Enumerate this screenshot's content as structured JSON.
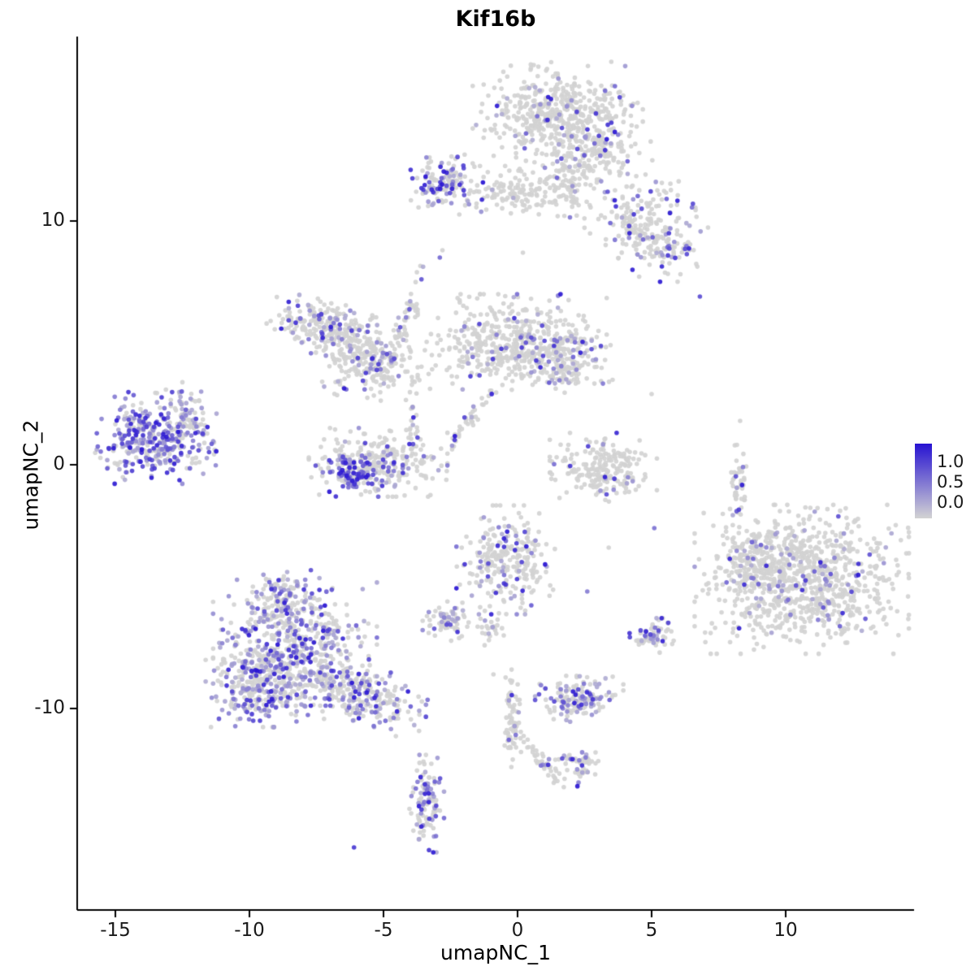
{
  "title": "Kif16b",
  "axes": {
    "x": {
      "label": "umapNC_1",
      "ticks": [
        -15,
        -10,
        -5,
        0,
        5,
        10
      ]
    },
    "y": {
      "label": "umapNC_2",
      "ticks": [
        -10,
        0,
        10
      ]
    }
  },
  "legend": {
    "labels": [
      "1.0",
      "0.5",
      "0.0"
    ],
    "color_high": "#2713d2",
    "color_low": "#d3d3d3"
  },
  "chart_data": {
    "type": "scatter",
    "title": "Kif16b",
    "xlabel": "umapNC_1",
    "ylabel": "umapNC_2",
    "xlim": [
      -16.4,
      14.8
    ],
    "ylim": [
      -17.9,
      17.6
    ],
    "x_ticks": [
      -15,
      -10,
      -5,
      0,
      5,
      10
    ],
    "y_ticks": [
      -10,
      0,
      10
    ],
    "legend_title_values": [
      1.0,
      0.5,
      0.0
    ],
    "color_scale": {
      "low": "#d3d3d3",
      "high": "#2713d2",
      "value_range": [
        0,
        1
      ]
    },
    "point_radius_px": 2.8,
    "clusters": [
      {
        "name": "top-main",
        "x": 1.5,
        "y": 14.3,
        "sx": 1.35,
        "sy": 0.95,
        "rot": 0,
        "n": 520,
        "frac": 0.1
      },
      {
        "name": "top-tail",
        "x": 3.1,
        "y": 12.7,
        "sx": 0.8,
        "sy": 0.7,
        "rot": -20,
        "n": 130,
        "frac": 0.12
      },
      {
        "name": "top-neck",
        "x": 1.9,
        "y": 11.5,
        "sx": 0.35,
        "sy": 0.7,
        "rot": 0,
        "n": 55,
        "frac": 0.06
      },
      {
        "name": "upper-band",
        "x": 0.2,
        "y": 11.2,
        "sx": 1.3,
        "sy": 0.45,
        "rot": 0,
        "n": 150,
        "frac": 0.07
      },
      {
        "name": "upper-purple",
        "x": -2.6,
        "y": 11.6,
        "sx": 0.65,
        "sy": 0.5,
        "rot": 0,
        "n": 130,
        "frac": 0.45,
        "bias": 1.5
      },
      {
        "name": "upper-right-arm",
        "x": 4.7,
        "y": 9.9,
        "sx": 0.85,
        "sy": 0.8,
        "rot": 30,
        "n": 170,
        "frac": 0.16,
        "bias": 1.3
      },
      {
        "name": "upper-right-lower",
        "x": 5.6,
        "y": 8.8,
        "sx": 0.5,
        "sy": 0.55,
        "rot": 0,
        "n": 70,
        "frac": 0.2,
        "bias": 1.3
      },
      {
        "name": "left-wave-a",
        "x": -7.1,
        "y": 5.6,
        "sx": 0.95,
        "sy": 0.5,
        "rot": -15,
        "n": 250,
        "frac": 0.22
      },
      {
        "name": "left-wave-b",
        "x": -5.7,
        "y": 4.2,
        "sx": 0.75,
        "sy": 0.6,
        "rot": 20,
        "n": 190,
        "frac": 0.18
      },
      {
        "name": "diag-streak",
        "x": -4.4,
        "y": 5.2,
        "sx": 1.3,
        "sy": 0.14,
        "rot": 72,
        "n": 70,
        "frac": 0.25
      },
      {
        "name": "center-main",
        "x": -0.2,
        "y": 5.0,
        "sx": 1.5,
        "sy": 0.85,
        "rot": 0,
        "n": 470,
        "frac": 0.12
      },
      {
        "name": "center-right-lobe",
        "x": 1.9,
        "y": 4.2,
        "sx": 0.7,
        "sy": 0.55,
        "rot": 0,
        "n": 150,
        "frac": 0.12
      },
      {
        "name": "center-streak",
        "x": -1.7,
        "y": 1.9,
        "sx": 0.75,
        "sy": 0.12,
        "rot": 55,
        "n": 40,
        "frac": 0.15
      },
      {
        "name": "connector-left",
        "x": -3.9,
        "y": 2.4,
        "sx": 0.12,
        "sy": 0.7,
        "rot": 0,
        "n": 30,
        "frac": 0.25
      },
      {
        "name": "far-left-purple",
        "x": -13.5,
        "y": 1.1,
        "sx": 1.0,
        "sy": 0.8,
        "rot": 0,
        "n": 380,
        "frac": 0.62,
        "bias": 1.6
      },
      {
        "name": "far-left-arc",
        "x": -12.2,
        "y": 2.1,
        "sx": 0.3,
        "sy": 0.55,
        "rot": 25,
        "n": 45,
        "frac": 0.3
      },
      {
        "name": "u-hook",
        "x": -5.2,
        "y": 0.1,
        "sx": 1.1,
        "sy": 0.6,
        "rot": 0,
        "n": 300,
        "frac": 0.22
      },
      {
        "name": "u-hook-dark",
        "x": -6.2,
        "y": -0.4,
        "sx": 0.35,
        "sy": 0.3,
        "rot": 0,
        "n": 70,
        "frac": 0.75,
        "bias": 0.9
      },
      {
        "name": "right-hook",
        "x": 3.2,
        "y": -0.1,
        "sx": 0.85,
        "sy": 0.6,
        "rot": 0,
        "n": 210,
        "frac": 0.09,
        "bias": 1.2
      },
      {
        "name": "thin-vertical-right",
        "x": 8.2,
        "y": -0.7,
        "sx": 0.14,
        "sy": 0.75,
        "rot": 0,
        "n": 45,
        "frac": 0.05
      },
      {
        "name": "bottom-left-a",
        "x": -8.3,
        "y": -7.3,
        "sx": 1.3,
        "sy": 1.1,
        "rot": 0,
        "n": 500,
        "frac": 0.4
      },
      {
        "name": "bottom-left-b",
        "x": -9.4,
        "y": -9.0,
        "sx": 0.95,
        "sy": 0.75,
        "rot": 0,
        "n": 330,
        "frac": 0.45
      },
      {
        "name": "bottom-left-tail",
        "x": -5.7,
        "y": -9.4,
        "sx": 1.05,
        "sy": 0.5,
        "rot": -22,
        "n": 240,
        "frac": 0.35
      },
      {
        "name": "bottom-left-top",
        "x": -8.8,
        "y": -5.5,
        "sx": 0.6,
        "sy": 0.5,
        "rot": 0,
        "n": 110,
        "frac": 0.3
      },
      {
        "name": "center-bottom",
        "x": -0.4,
        "y": -3.9,
        "sx": 0.8,
        "sy": 0.95,
        "rot": 0,
        "n": 260,
        "frac": 0.18,
        "bias": 1.5
      },
      {
        "name": "small-left-bottom",
        "x": -2.6,
        "y": -6.4,
        "sx": 0.4,
        "sy": 0.35,
        "rot": 0,
        "n": 70,
        "frac": 0.3
      },
      {
        "name": "tiny-center-bottom",
        "x": -1.0,
        "y": -6.7,
        "sx": 0.22,
        "sy": 0.3,
        "rot": 0,
        "n": 25,
        "frac": 0.2
      },
      {
        "name": "small-right-mid",
        "x": 5.0,
        "y": -7.0,
        "sx": 0.35,
        "sy": 0.3,
        "rot": 0,
        "n": 60,
        "frac": 0.5,
        "bias": 1.4
      },
      {
        "name": "bottom-dense",
        "x": 2.3,
        "y": -9.6,
        "sx": 0.7,
        "sy": 0.4,
        "rot": 0,
        "n": 150,
        "frac": 0.35
      },
      {
        "name": "right-big",
        "x": 10.6,
        "y": -4.7,
        "sx": 1.7,
        "sy": 1.3,
        "rot": 0,
        "n": 900,
        "frac": 0.09
      },
      {
        "name": "right-big-spur",
        "x": 8.6,
        "y": -4.1,
        "sx": 0.5,
        "sy": 0.8,
        "rot": 0,
        "n": 120,
        "frac": 0.12
      },
      {
        "name": "bottom-streak",
        "x": -0.2,
        "y": -10.4,
        "sx": 0.14,
        "sy": 0.85,
        "rot": 0,
        "n": 65,
        "frac": 0.05
      },
      {
        "name": "bottom-diag",
        "x": 0.7,
        "y": -11.9,
        "sx": 0.65,
        "sy": 0.12,
        "rot": -55,
        "n": 40,
        "frac": 0.06
      },
      {
        "name": "bottom-mid-small",
        "x": 2.2,
        "y": -12.4,
        "sx": 0.45,
        "sy": 0.35,
        "rot": 0,
        "n": 60,
        "frac": 0.4
      },
      {
        "name": "bottom-elongated",
        "x": -3.4,
        "y": -13.9,
        "sx": 0.28,
        "sy": 0.85,
        "rot": 0,
        "n": 110,
        "frac": 0.45,
        "bias": 1.4
      }
    ],
    "singles": [
      {
        "x": -6.1,
        "y": -15.7,
        "v": 0.8
      },
      {
        "x": 6.8,
        "y": 6.9,
        "v": 0.7
      },
      {
        "x": -2.9,
        "y": 8.5,
        "v": 0.55
      },
      {
        "x": -2.8,
        "y": 8.8,
        "v": 0.0
      },
      {
        "x": 8.3,
        "y": 1.8,
        "v": 0.0
      },
      {
        "x": 5.1,
        "y": -2.6,
        "v": 0.5
      },
      {
        "x": 2.6,
        "y": -5.2,
        "v": 0.45
      },
      {
        "x": -0.9,
        "y": -8.6,
        "v": 0.0
      },
      {
        "x": 3.4,
        "y": -3.4,
        "v": 0.0
      },
      {
        "x": 5.0,
        "y": 2.9,
        "v": 0.0
      },
      {
        "x": -11.8,
        "y": 3.0,
        "v": 0.3
      },
      {
        "x": 0.2,
        "y": 8.7,
        "v": 0.0
      }
    ]
  }
}
